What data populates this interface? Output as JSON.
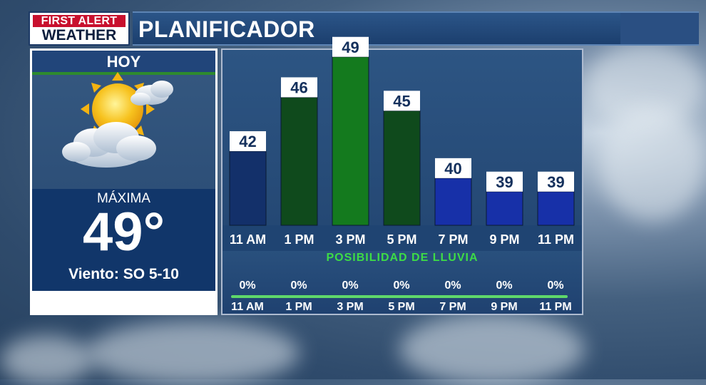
{
  "header": {
    "logo_line1": "FIRST ALERT",
    "logo_line2": "WEATHER",
    "title": "PLANIFICADOR"
  },
  "today": {
    "label": "HOY",
    "icon": "partly-sunny-icon",
    "max_label": "MÁXIMA",
    "max_temp": "49°",
    "wind": "Viento: SO 5-10"
  },
  "colors": {
    "cool_bar": "#1730a8",
    "warm_bar": "#0f4a1c",
    "peak_bar": "#147a1e",
    "navy_bar": "#13306a",
    "rain_title": "#3ddc46"
  },
  "chart_data": {
    "type": "bar",
    "categories": [
      "11 AM",
      "1 PM",
      "3 PM",
      "5 PM",
      "7 PM",
      "9 PM",
      "11 PM"
    ],
    "values": [
      42,
      46,
      49,
      45,
      40,
      39,
      39
    ],
    "value_labels": [
      "42",
      "46",
      "49",
      "45",
      "40",
      "39",
      "39"
    ]
  },
  "rain": {
    "title": "POSIBILIDAD DE LLUVIA",
    "items": [
      {
        "time": "11 AM",
        "pct": "0%"
      },
      {
        "time": "1 PM",
        "pct": "0%"
      },
      {
        "time": "3 PM",
        "pct": "0%"
      },
      {
        "time": "5 PM",
        "pct": "0%"
      },
      {
        "time": "7 PM",
        "pct": "0%"
      },
      {
        "time": "9 PM",
        "pct": "0%"
      },
      {
        "time": "11 PM",
        "pct": "0%"
      }
    ]
  }
}
